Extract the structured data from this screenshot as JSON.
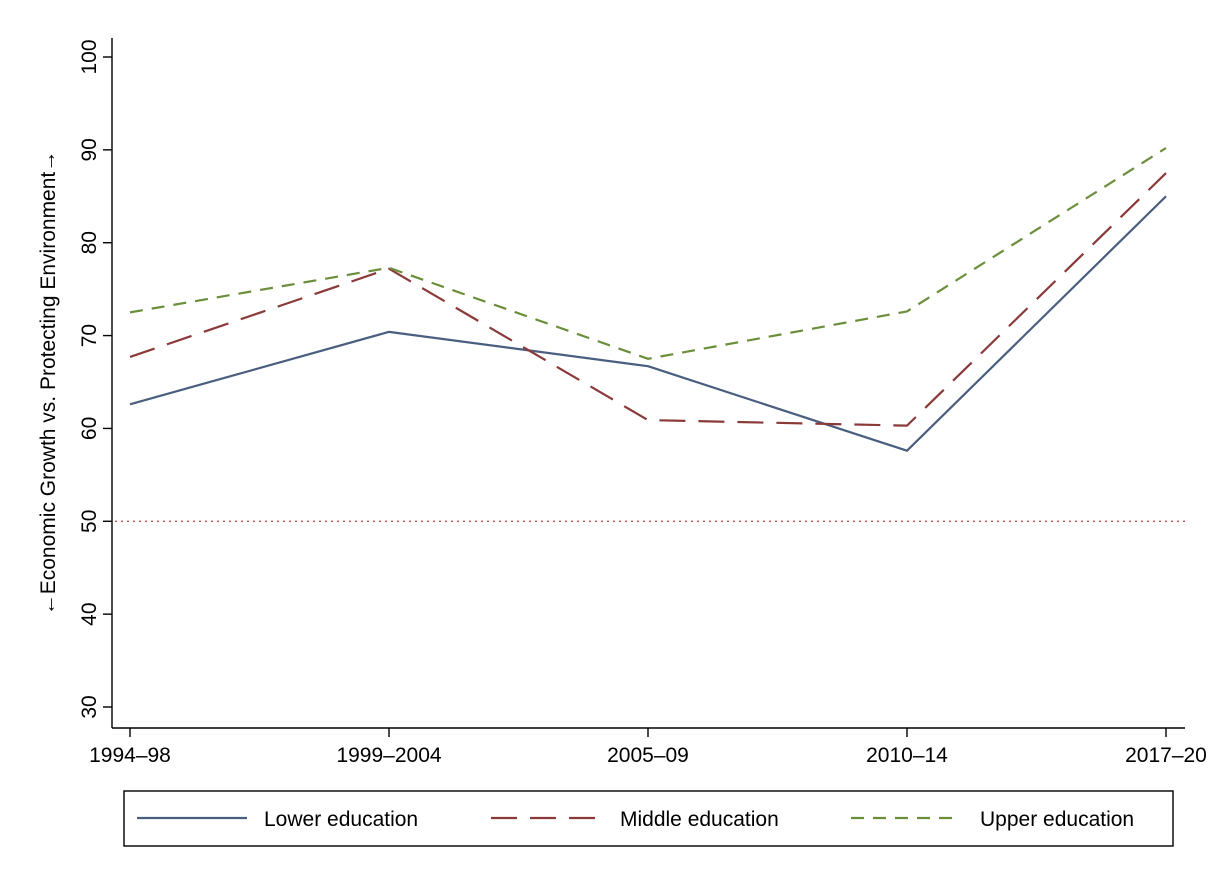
{
  "chart_data": {
    "type": "line",
    "title": "",
    "xlabel": "",
    "ylabel": "←Economic Growth vs. Protecting Environment→",
    "categories": [
      "1994–98",
      "1999–2004",
      "2005–09",
      "2010–14",
      "2017–20"
    ],
    "ylim": [
      30,
      100
    ],
    "yticks": [
      30,
      40,
      50,
      60,
      70,
      80,
      90,
      100
    ],
    "reference_line": {
      "y": 50,
      "style": "dotted",
      "color": "#c0504d"
    },
    "grid": false,
    "legend_position": "bottom",
    "series": [
      {
        "name": "Lower education",
        "values": [
          62.6,
          70.4,
          66.7,
          57.6,
          85.0
        ],
        "color": "#4a5f80",
        "dash": "solid"
      },
      {
        "name": "Middle education",
        "values": [
          67.7,
          77.2,
          60.9,
          60.3,
          87.5
        ],
        "color": "#8b3a3a",
        "dash": "long-dash"
      },
      {
        "name": "Upper education",
        "values": [
          72.5,
          77.3,
          67.5,
          72.6,
          90.2
        ],
        "color": "#6b8e3a",
        "dash": "short-dash"
      }
    ]
  }
}
